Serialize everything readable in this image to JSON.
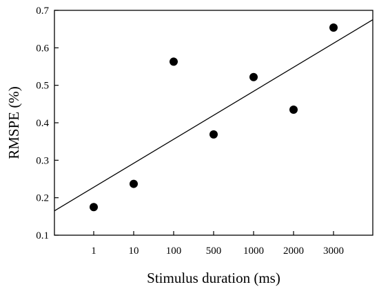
{
  "chart_data": {
    "type": "scatter",
    "title": "",
    "xlabel": "Stimulus duration (ms)",
    "ylabel": "RMSPE (%)",
    "categories": [
      "1",
      "10",
      "100",
      "500",
      "1000",
      "2000",
      "3000"
    ],
    "series": [
      {
        "x": [
          "1",
          "10",
          "100",
          "500",
          "1000",
          "2000",
          "3000"
        ],
        "y": [
          0.175,
          0.237,
          0.563,
          0.369,
          0.522,
          0.435,
          0.654
        ]
      }
    ],
    "regression_line": {
      "start_y": 0.165,
      "end_y": 0.675
    },
    "ylim": [
      0.1,
      0.7
    ],
    "yticks": [
      "0.1",
      "0.2",
      "0.3",
      "0.4",
      "0.5",
      "0.6",
      "0.7"
    ],
    "grid": false,
    "legend": "none",
    "colors": {
      "marker": "#000000",
      "line": "#000000",
      "axis": "#000000"
    }
  }
}
